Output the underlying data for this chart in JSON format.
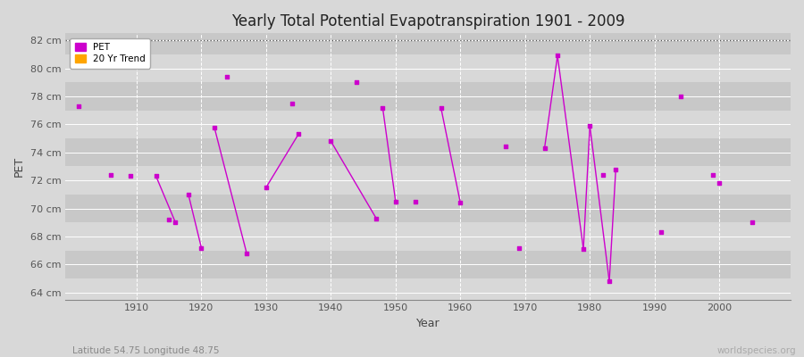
{
  "title": "Yearly Total Potential Evapotranspiration 1901 - 2009",
  "xlabel": "Year",
  "ylabel": "PET",
  "subtitle": "Latitude 54.75 Longitude 48.75",
  "watermark": "worldspecies.org",
  "ylim": [
    63.5,
    82.5
  ],
  "xlim": [
    1899,
    2011
  ],
  "yticks": [
    64,
    66,
    68,
    70,
    72,
    74,
    76,
    78,
    80,
    82
  ],
  "ytick_labels": [
    "64 cm",
    "66 cm",
    "68 cm",
    "70 cm",
    "72 cm",
    "74 cm",
    "76 cm",
    "78 cm",
    "80 cm",
    "82 cm"
  ],
  "xticks": [
    1910,
    1920,
    1930,
    1940,
    1950,
    1960,
    1970,
    1980,
    1990,
    2000
  ],
  "hline_y": 82,
  "pet_color": "#CC00CC",
  "trend_color": "#FFA500",
  "bg_color": "#d8d8d8",
  "plot_bg_color": "#d8d8d8",
  "pet_data": [
    [
      1901,
      77.3
    ],
    [
      1906,
      72.4
    ],
    [
      1909,
      72.3
    ],
    [
      1913,
      72.3
    ],
    [
      1915,
      69.2
    ],
    [
      1916,
      69.0
    ],
    [
      1918,
      71.0
    ],
    [
      1920,
      67.2
    ],
    [
      1922,
      75.8
    ],
    [
      1924,
      79.4
    ],
    [
      1927,
      66.8
    ],
    [
      1930,
      71.5
    ],
    [
      1934,
      77.5
    ],
    [
      1935,
      75.3
    ],
    [
      1940,
      74.8
    ],
    [
      1944,
      79.0
    ],
    [
      1947,
      69.3
    ],
    [
      1948,
      77.2
    ],
    [
      1950,
      70.5
    ],
    [
      1953,
      70.5
    ],
    [
      1957,
      77.2
    ],
    [
      1960,
      70.4
    ],
    [
      1967,
      74.4
    ],
    [
      1969,
      67.2
    ],
    [
      1973,
      74.3
    ],
    [
      1975,
      80.9
    ],
    [
      1979,
      67.1
    ],
    [
      1980,
      75.9
    ],
    [
      1982,
      72.4
    ],
    [
      1983,
      64.8
    ],
    [
      1984,
      72.8
    ],
    [
      1991,
      68.3
    ],
    [
      1994,
      78.0
    ],
    [
      1999,
      72.4
    ],
    [
      2000,
      71.8
    ],
    [
      2005,
      69.0
    ]
  ],
  "trend_segments": [
    [
      [
        1913,
        72.3
      ],
      [
        1916,
        69.0
      ]
    ],
    [
      [
        1918,
        71.0
      ],
      [
        1920,
        67.2
      ]
    ],
    [
      [
        1922,
        75.8
      ],
      [
        1927,
        66.8
      ]
    ],
    [
      [
        1930,
        71.5
      ],
      [
        1935,
        75.3
      ]
    ],
    [
      [
        1940,
        74.8
      ],
      [
        1947,
        69.3
      ]
    ],
    [
      [
        1948,
        77.2
      ],
      [
        1950,
        70.5
      ]
    ],
    [
      [
        1957,
        77.2
      ],
      [
        1960,
        70.4
      ]
    ],
    [
      [
        1973,
        74.3
      ],
      [
        1975,
        80.9
      ]
    ],
    [
      [
        1975,
        80.9
      ],
      [
        1979,
        67.1
      ]
    ],
    [
      [
        1979,
        67.1
      ],
      [
        1980,
        75.9
      ]
    ],
    [
      [
        1980,
        75.9
      ],
      [
        1983,
        64.8
      ]
    ],
    [
      [
        1983,
        64.8
      ],
      [
        1984,
        72.8
      ]
    ]
  ],
  "band_colors": [
    "#d8d8d8",
    "#c8c8c8"
  ]
}
